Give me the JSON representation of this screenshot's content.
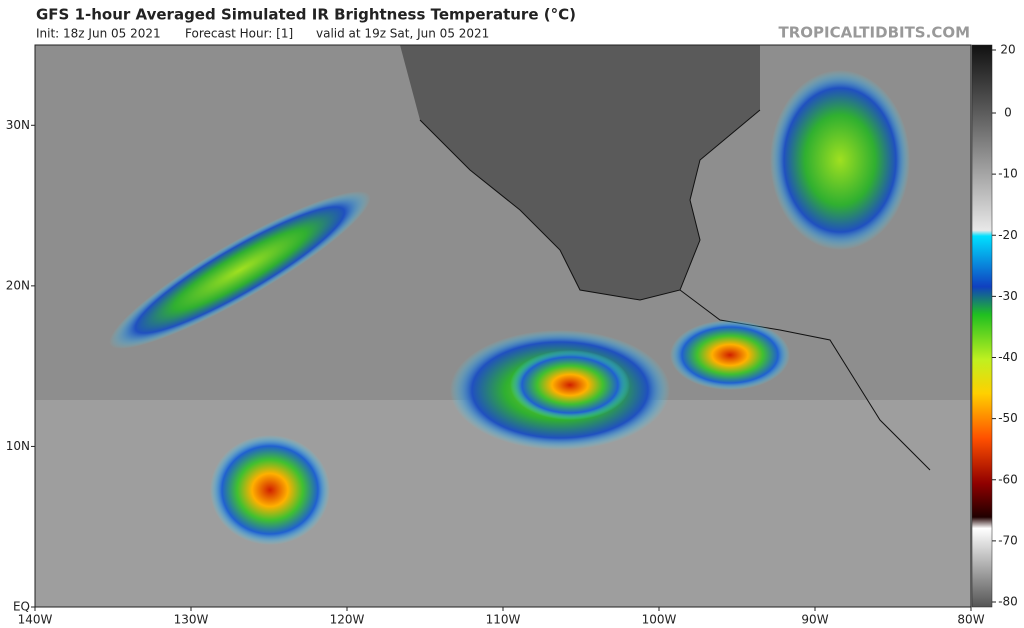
{
  "header": {
    "title": "GFS 1-hour Averaged Simulated IR Brightness Temperature (°C)",
    "init": "Init: 18z Jun 05 2021",
    "forecast_hour": "Forecast Hour: [1]",
    "valid": "valid at 19z Sat, Jun 05 2021",
    "credit": "TROPICALTIDBITS.COM"
  },
  "map": {
    "xlim": [
      -140,
      -80
    ],
    "ylim": [
      0,
      35
    ],
    "xticks": [
      {
        "value": -140,
        "label": "140W"
      },
      {
        "value": -130,
        "label": "130W"
      },
      {
        "value": -120,
        "label": "120W"
      },
      {
        "value": -110,
        "label": "110W"
      },
      {
        "value": -100,
        "label": "100W"
      },
      {
        "value": -90,
        "label": "90W"
      },
      {
        "value": -80,
        "label": "80W"
      }
    ],
    "yticks": [
      {
        "value": 0,
        "label": "EQ"
      },
      {
        "value": 10,
        "label": "10N"
      },
      {
        "value": 20,
        "label": "20N"
      },
      {
        "value": 30,
        "label": "30N"
      }
    ]
  },
  "colorbar": {
    "ticks": [
      20,
      0,
      -10,
      -20,
      -30,
      -40,
      -50,
      -60,
      -70,
      -80
    ]
  }
}
